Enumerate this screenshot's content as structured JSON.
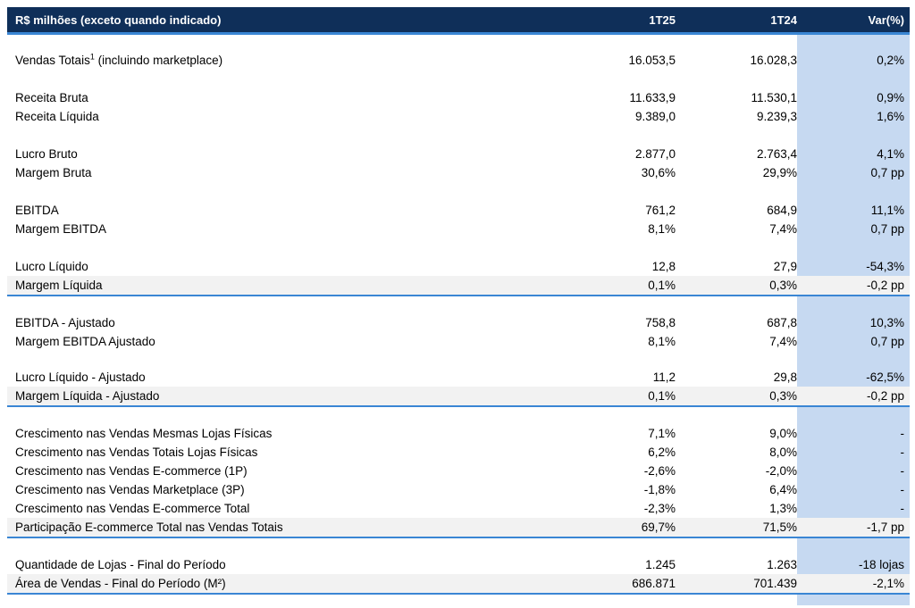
{
  "header": {
    "label": "R$ milhões (exceto quando indicado)",
    "col1": "1T25",
    "col2": "1T24",
    "col3": "Var(%)"
  },
  "groups": [
    {
      "rows": [
        {
          "label": "Vendas Totais",
          "sup": "1",
          "label_suffix": " (incluindo marketplace)",
          "v1": "16.053,5",
          "v2": "16.028,3",
          "v3": "0,2%"
        }
      ]
    },
    {
      "rows": [
        {
          "label": "Receita Bruta",
          "v1": "11.633,9",
          "v2": "11.530,1",
          "v3": "0,9%"
        },
        {
          "label": "Receita Líquida",
          "v1": "9.389,0",
          "v2": "9.239,3",
          "v3": "1,6%"
        }
      ]
    },
    {
      "rows": [
        {
          "label": "Lucro Bruto",
          "v1": "2.877,0",
          "v2": "2.763,4",
          "v3": "4,1%"
        },
        {
          "label": "Margem Bruta",
          "v1": "30,6%",
          "v2": "29,9%",
          "v3": "0,7 pp"
        }
      ]
    },
    {
      "rows": [
        {
          "label": "EBITDA",
          "v1": "761,2",
          "v2": "684,9",
          "v3": "11,1%"
        },
        {
          "label": "Margem EBITDA",
          "v1": "8,1%",
          "v2": "7,4%",
          "v3": "0,7 pp"
        }
      ]
    },
    {
      "rows": [
        {
          "label": "Lucro Líquido",
          "v1": "12,8",
          "v2": "27,9",
          "v3": "-54,3%"
        },
        {
          "label": "Margem Líquida",
          "v1": "0,1%",
          "v2": "0,3%",
          "v3": "-0,2 pp"
        }
      ]
    },
    {
      "rows": [
        {
          "label": "EBITDA - Ajustado",
          "v1": "758,8",
          "v2": "687,8",
          "v3": "10,3%"
        },
        {
          "label": "Margem EBITDA Ajustado",
          "v1": "8,1%",
          "v2": "7,4%",
          "v3": "0,7 pp"
        }
      ]
    },
    {
      "rows": [
        {
          "label": "Lucro Líquido - Ajustado",
          "v1": "11,2",
          "v2": "29,8",
          "v3": "-62,5%"
        },
        {
          "label": "Margem Líquida - Ajustado",
          "v1": "0,1%",
          "v2": "0,3%",
          "v3": "-0,2 pp"
        }
      ]
    },
    {
      "rows": [
        {
          "label": "Crescimento nas Vendas Mesmas Lojas Físicas",
          "v1": "7,1%",
          "v2": "9,0%",
          "v3": "-"
        },
        {
          "label": "Crescimento nas Vendas Totais Lojas Físicas",
          "v1": "6,2%",
          "v2": "8,0%",
          "v3": "-"
        },
        {
          "label": "Crescimento nas Vendas E-commerce (1P)",
          "v1": "-2,6%",
          "v2": "-2,0%",
          "v3": "-"
        },
        {
          "label": "Crescimento nas Vendas Marketplace (3P)",
          "v1": "-1,8%",
          "v2": "6,4%",
          "v3": "-"
        },
        {
          "label": "Crescimento nas Vendas E-commerce Total",
          "v1": "-2,3%",
          "v2": "1,3%",
          "v3": "-"
        },
        {
          "label": "Participação E-commerce Total nas Vendas Totais",
          "v1": "69,7%",
          "v2": "71,5%",
          "v3": "-1,7 pp"
        }
      ]
    },
    {
      "rows": [
        {
          "label": "Quantidade de Lojas - Final do Período",
          "v1": "1.245",
          "v2": "1.263",
          "v3": "-18 lojas"
        },
        {
          "label": "Área de Vendas - Final do Período (M²)",
          "v1": "686.871",
          "v2": "701.439",
          "v3": "-2,1%"
        }
      ]
    }
  ]
}
